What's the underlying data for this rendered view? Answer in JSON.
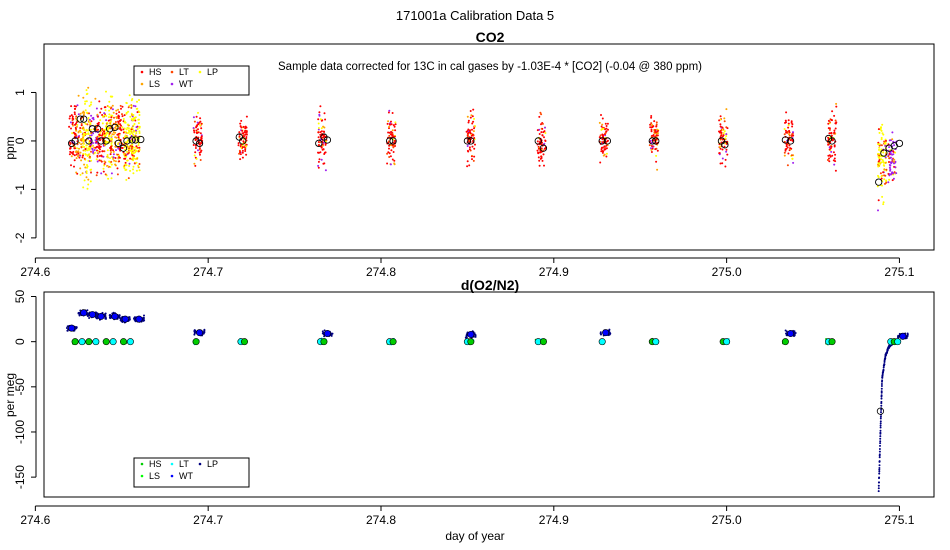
{
  "figure": {
    "title": "171001a   Calibration Data 5"
  },
  "chart_data": [
    {
      "type": "scatter",
      "title": "CO2",
      "annotation": "Sample data corrected for 13C in cal gases by -1.03E-4 * [CO2] (-0.04 @ 380 ppm)",
      "xlabel": "",
      "ylabel": "ppm",
      "xlim": [
        274.605,
        275.12
      ],
      "ylim": [
        -2.25,
        2.0
      ],
      "xticks": [
        274.6,
        274.7,
        274.8,
        274.9,
        275.0,
        275.1
      ],
      "xticklabels": [
        "274.6",
        "274.7",
        "274.8",
        "274.9",
        "275.0",
        "275.1"
      ],
      "yticks": [
        -2,
        -1,
        0,
        1
      ],
      "yticklabels": [
        "-2",
        "-1",
        "0",
        "1"
      ],
      "grid": false,
      "legend_position": "top-left",
      "legend": [
        {
          "label": "HS",
          "color": "#ff0000"
        },
        {
          "label": "LT",
          "color": "#ff4500"
        },
        {
          "label": "LP",
          "color": "#ffff00"
        },
        {
          "label": "LS",
          "color": "#ffa500"
        },
        {
          "label": "WT",
          "color": "#a020f0"
        }
      ],
      "clusters": [
        {
          "x": 274.622,
          "color": "#ff0000",
          "spread": 1.0
        },
        {
          "x": 274.626,
          "color": "#ffa500",
          "spread": 1.1
        },
        {
          "x": 274.63,
          "color": "#ffff00",
          "spread": 1.2
        },
        {
          "x": 274.634,
          "color": "#a020f0",
          "spread": 1.0
        },
        {
          "x": 274.638,
          "color": "#ff0000",
          "spread": 1.0
        },
        {
          "x": 274.642,
          "color": "#ffff00",
          "spread": 1.2
        },
        {
          "x": 274.646,
          "color": "#ffa500",
          "spread": 1.0
        },
        {
          "x": 274.65,
          "color": "#ff0000",
          "spread": 1.0
        },
        {
          "x": 274.654,
          "color": "#ffff00",
          "spread": 1.1
        },
        {
          "x": 274.658,
          "color": "#ffff00",
          "spread": 1.1
        },
        {
          "x": 274.694,
          "color": "#ff0000",
          "spread": 0.8
        },
        {
          "x": 274.72,
          "color": "#ff0000",
          "spread": 0.6
        },
        {
          "x": 274.766,
          "color": "#ff0000",
          "spread": 0.9
        },
        {
          "x": 274.806,
          "color": "#ff0000",
          "spread": 0.7
        },
        {
          "x": 274.852,
          "color": "#ff0000",
          "spread": 0.8
        },
        {
          "x": 274.893,
          "color": "#ff0000",
          "spread": 0.7
        },
        {
          "x": 274.929,
          "color": "#ff0000",
          "spread": 0.7
        },
        {
          "x": 274.958,
          "color": "#ff0000",
          "spread": 0.7
        },
        {
          "x": 274.998,
          "color": "#ff0000",
          "spread": 0.7
        },
        {
          "x": 275.036,
          "color": "#ff0000",
          "spread": 0.7
        },
        {
          "x": 275.061,
          "color": "#ff0000",
          "spread": 0.8
        },
        {
          "x": 275.09,
          "color": "#ffff00",
          "spread": 1.2
        },
        {
          "x": 275.096,
          "color": "#a020f0",
          "spread": 0.7
        }
      ],
      "means": {
        "x": [
          274.621,
          274.623,
          274.626,
          274.628,
          274.631,
          274.633,
          274.636,
          274.638,
          274.641,
          274.643,
          274.646,
          274.648,
          274.651,
          274.653,
          274.656,
          274.658,
          274.661,
          274.693,
          274.695,
          274.718,
          274.72,
          274.764,
          274.767,
          274.769,
          274.805,
          274.807,
          274.85,
          274.852,
          274.891,
          274.894,
          274.928,
          274.931,
          274.957,
          274.959,
          274.997,
          274.999,
          275.034,
          275.037,
          275.059,
          275.061,
          275.088,
          275.091,
          275.094,
          275.097,
          275.1
        ],
        "y": [
          -0.05,
          0.0,
          0.45,
          0.45,
          0.0,
          0.25,
          0.25,
          0.0,
          0.0,
          0.25,
          0.28,
          -0.05,
          -0.15,
          0.0,
          0.02,
          0.02,
          0.03,
          0.0,
          -0.05,
          0.08,
          0.0,
          -0.05,
          0.08,
          0.02,
          0.0,
          0.0,
          0.0,
          0.0,
          0.0,
          -0.15,
          0.0,
          0.0,
          0.0,
          0.0,
          0.0,
          -0.08,
          0.02,
          0.0,
          0.05,
          0.0,
          -0.85,
          -0.25,
          -0.15,
          -0.1,
          -0.05
        ]
      }
    },
    {
      "type": "scatter",
      "title": "d(O2/N2)",
      "xlabel": "day of year",
      "ylabel": "per meg",
      "xlim": [
        274.605,
        275.12
      ],
      "ylim": [
        -172,
        55
      ],
      "xticks": [
        274.6,
        274.7,
        274.8,
        274.9,
        275.0,
        275.1
      ],
      "xticklabels": [
        "274.6",
        "274.7",
        "274.8",
        "274.9",
        "275.0",
        "275.1"
      ],
      "yticks": [
        -150,
        -100,
        -50,
        0,
        50
      ],
      "yticklabels": [
        "-150",
        "-100",
        "-50",
        "0",
        "50"
      ],
      "grid": false,
      "legend_position": "bottom-left",
      "legend": [
        {
          "label": "HS",
          "color": "#00cd00"
        },
        {
          "label": "LT",
          "color": "#00ffff"
        },
        {
          "label": "LP",
          "color": "#000080"
        },
        {
          "label": "LS",
          "color": "#00ff00"
        },
        {
          "label": "WT",
          "color": "#0000ff"
        }
      ],
      "highs": [
        {
          "x": 274.621,
          "y": 15
        },
        {
          "x": 274.628,
          "y": 32
        },
        {
          "x": 274.633,
          "y": 30
        },
        {
          "x": 274.638,
          "y": 28
        },
        {
          "x": 274.646,
          "y": 28
        },
        {
          "x": 274.652,
          "y": 25
        },
        {
          "x": 274.66,
          "y": 25
        },
        {
          "x": 274.695,
          "y": 10
        },
        {
          "x": 274.769,
          "y": 9
        },
        {
          "x": 274.852,
          "y": 8
        },
        {
          "x": 274.93,
          "y": 10
        },
        {
          "x": 275.037,
          "y": 9
        },
        {
          "x": 275.102,
          "y": 6
        }
      ],
      "zeros": [
        274.623,
        274.627,
        274.631,
        274.635,
        274.641,
        274.645,
        274.651,
        274.655,
        274.693,
        274.719,
        274.721,
        274.765,
        274.767,
        274.805,
        274.807,
        274.85,
        274.852,
        274.891,
        274.894,
        274.928,
        274.957,
        274.959,
        274.998,
        275.0,
        275.034,
        275.059,
        275.061,
        275.095,
        275.097,
        275.099
      ],
      "drift": {
        "x": [
          275.088,
          275.089,
          275.09,
          275.092,
          275.094,
          275.097,
          275.1
        ],
        "y": [
          -165,
          -100,
          -40,
          -15,
          -5,
          0,
          2
        ]
      },
      "drift_mean": {
        "x": 275.089,
        "y": -77
      }
    }
  ]
}
